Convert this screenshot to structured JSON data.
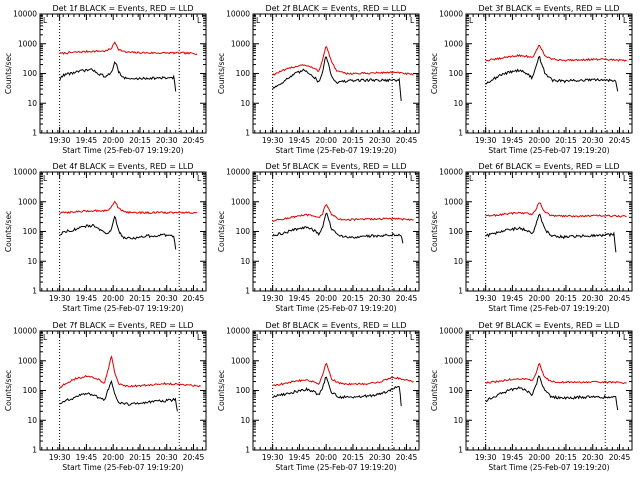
{
  "colors": {
    "events": "#000000",
    "lld": "#e00000",
    "frame": "#000000",
    "marker": "#000000"
  },
  "chart_data": [
    {
      "type": "line",
      "title": "Det 1f BLACK = Events, RED = LLD",
      "legend_letter": "L",
      "xlabel": "Start Time (25-Feb-07 19:19:20)",
      "ylabel": "Counts/sec",
      "yscale": "log",
      "ylim": [
        1,
        10000
      ],
      "ytick_labels": [
        "1",
        "10",
        "100",
        "1000",
        "10000"
      ],
      "xlim": [
        0,
        93
      ],
      "xtick_positions": [
        11,
        26,
        41,
        56,
        71,
        86
      ],
      "xtick_labels": [
        "19:30",
        "19:45",
        "20:00",
        "20:15",
        "20:30",
        "20:45"
      ],
      "markers_x": [
        11,
        78
      ],
      "data_x": [
        11,
        75
      ],
      "series": [
        {
          "name": "LLD",
          "color": "#e00000",
          "x": [
            11,
            20,
            30,
            37,
            40,
            42,
            44,
            48,
            55,
            65,
            75,
            80,
            88
          ],
          "y": [
            470,
            520,
            560,
            570,
            700,
            1150,
            650,
            520,
            500,
            490,
            490,
            490,
            460
          ]
        },
        {
          "name": "Events",
          "color": "#000000",
          "x": [
            11,
            13,
            20,
            26,
            30,
            34,
            37,
            40,
            42,
            44,
            47,
            52,
            60,
            70,
            75,
            76
          ],
          "y": [
            60,
            90,
            110,
            130,
            130,
            90,
            80,
            100,
            280,
            120,
            70,
            65,
            70,
            70,
            75,
            25
          ]
        }
      ]
    },
    {
      "type": "line",
      "title": "Det 2f BLACK = Events, RED = LLD",
      "legend_letter": "L",
      "xlabel": "Start Time (25-Feb-07 19:19:20)",
      "ylabel": "Counts/sec",
      "yscale": "log",
      "ylim": [
        1,
        10000
      ],
      "ytick_labels": [
        "1",
        "10",
        "100",
        "1000",
        "10000"
      ],
      "xlim": [
        0,
        93
      ],
      "xtick_positions": [
        11,
        26,
        41,
        56,
        71,
        86
      ],
      "xtick_labels": [
        "19:30",
        "19:45",
        "20:00",
        "20:15",
        "20:30",
        "20:45"
      ],
      "markers_x": [
        11,
        78
      ],
      "data_x": [
        11,
        82
      ],
      "series": [
        {
          "name": "LLD",
          "color": "#e00000",
          "x": [
            11,
            16,
            22,
            28,
            33,
            37,
            39,
            41,
            44,
            47,
            52,
            60,
            70,
            78,
            85,
            90
          ],
          "y": [
            90,
            120,
            160,
            200,
            160,
            120,
            300,
            880,
            250,
            120,
            100,
            100,
            105,
            110,
            100,
            90
          ]
        },
        {
          "name": "Events",
          "color": "#000000",
          "x": [
            11,
            14,
            18,
            24,
            29,
            33,
            37,
            39,
            41,
            44,
            47,
            52,
            60,
            70,
            78,
            82,
            83
          ],
          "y": [
            32,
            40,
            60,
            100,
            130,
            90,
            50,
            120,
            420,
            80,
            50,
            55,
            60,
            60,
            60,
            60,
            12
          ]
        }
      ]
    },
    {
      "type": "line",
      "title": "Det 3f BLACK = Events, RED = LLD",
      "legend_letter": "L",
      "xlabel": "Start Time (25-Feb-07 19:19:20)",
      "ylabel": "Counts/sec",
      "yscale": "log",
      "ylim": [
        1,
        10000
      ],
      "ytick_labels": [
        "1",
        "10",
        "100",
        "1000",
        "10000"
      ],
      "xlim": [
        0,
        93
      ],
      "xtick_positions": [
        11,
        26,
        41,
        56,
        71,
        86
      ],
      "xtick_labels": [
        "19:30",
        "19:45",
        "20:00",
        "20:15",
        "20:30",
        "20:45"
      ],
      "markers_x": [
        11,
        78
      ],
      "data_x": [
        11,
        85
      ],
      "series": [
        {
          "name": "LLD",
          "color": "#e00000",
          "x": [
            11,
            18,
            24,
            30,
            34,
            37,
            39,
            41,
            44,
            48,
            55,
            65,
            75,
            85,
            90
          ],
          "y": [
            270,
            310,
            370,
            400,
            380,
            330,
            500,
            950,
            420,
            300,
            280,
            290,
            300,
            280,
            270
          ]
        },
        {
          "name": "Events",
          "color": "#000000",
          "x": [
            11,
            14,
            20,
            26,
            30,
            34,
            37,
            39,
            41,
            44,
            48,
            55,
            65,
            75,
            82,
            84,
            85
          ],
          "y": [
            45,
            60,
            90,
            120,
            130,
            100,
            70,
            150,
            380,
            110,
            60,
            55,
            60,
            60,
            60,
            60,
            25
          ]
        }
      ]
    },
    {
      "type": "line",
      "title": "Det 4f BLACK = Events, RED = LLD",
      "legend_letter": "L",
      "xlabel": "Start Time (25-Feb-07 19:19:20)",
      "ylabel": "Counts/sec",
      "yscale": "log",
      "ylim": [
        1,
        10000
      ],
      "ytick_labels": [
        "1",
        "10",
        "100",
        "1000",
        "10000"
      ],
      "xlim": [
        0,
        93
      ],
      "xtick_positions": [
        11,
        26,
        41,
        56,
        71,
        86
      ],
      "xtick_labels": [
        "19:30",
        "19:45",
        "20:00",
        "20:15",
        "20:30",
        "20:45"
      ],
      "markers_x": [
        11,
        78
      ],
      "data_x": [
        11,
        75
      ],
      "series": [
        {
          "name": "LLD",
          "color": "#e00000",
          "x": [
            11,
            20,
            30,
            37,
            40,
            42,
            44,
            48,
            55,
            65,
            75,
            80,
            88
          ],
          "y": [
            420,
            460,
            500,
            500,
            650,
            1100,
            600,
            450,
            430,
            430,
            430,
            430,
            420
          ]
        },
        {
          "name": "Events",
          "color": "#000000",
          "x": [
            11,
            14,
            20,
            26,
            30,
            34,
            37,
            40,
            42,
            44,
            47,
            52,
            60,
            70,
            75,
            76
          ],
          "y": [
            80,
            100,
            120,
            150,
            160,
            110,
            80,
            120,
            320,
            110,
            60,
            60,
            70,
            75,
            70,
            25
          ]
        }
      ]
    },
    {
      "type": "line",
      "title": "Det 5f BLACK = Events, RED = LLD",
      "legend_letter": "L",
      "xlabel": "Start Time (25-Feb-07 19:19:20)",
      "ylabel": "Counts/sec",
      "yscale": "log",
      "ylim": [
        1,
        10000
      ],
      "ytick_labels": [
        "1",
        "10",
        "100",
        "1000",
        "10000"
      ],
      "xlim": [
        0,
        93
      ],
      "xtick_positions": [
        11,
        26,
        41,
        56,
        71,
        86
      ],
      "xtick_labels": [
        "19:30",
        "19:45",
        "20:00",
        "20:15",
        "20:30",
        "20:45"
      ],
      "markers_x": [
        11,
        78
      ],
      "data_x": [
        11,
        84
      ],
      "series": [
        {
          "name": "LLD",
          "color": "#e00000",
          "x": [
            11,
            18,
            24,
            30,
            34,
            37,
            39,
            41,
            44,
            48,
            55,
            65,
            75,
            84,
            90
          ],
          "y": [
            230,
            270,
            320,
            360,
            330,
            280,
            400,
            900,
            370,
            260,
            250,
            260,
            270,
            260,
            250
          ]
        },
        {
          "name": "Events",
          "color": "#000000",
          "x": [
            11,
            14,
            20,
            26,
            30,
            34,
            37,
            39,
            41,
            44,
            48,
            55,
            65,
            75,
            82,
            83,
            84
          ],
          "y": [
            70,
            80,
            100,
            130,
            140,
            110,
            80,
            150,
            450,
            120,
            70,
            65,
            70,
            75,
            80,
            80,
            40
          ]
        }
      ]
    },
    {
      "type": "line",
      "title": "Det 6f BLACK = Events, RED = LLD",
      "legend_letter": "L",
      "xlabel": "Start Time (25-Feb-07 19:19:20)",
      "ylabel": "Counts/sec",
      "yscale": "log",
      "ylim": [
        1,
        10000
      ],
      "ytick_labels": [
        "1",
        "10",
        "100",
        "1000",
        "10000"
      ],
      "xlim": [
        0,
        93
      ],
      "xtick_positions": [
        11,
        26,
        41,
        56,
        71,
        86
      ],
      "xtick_labels": [
        "19:30",
        "19:45",
        "20:00",
        "20:15",
        "20:30",
        "20:45"
      ],
      "markers_x": [
        11,
        78
      ],
      "data_x": [
        11,
        84
      ],
      "series": [
        {
          "name": "LLD",
          "color": "#e00000",
          "x": [
            11,
            18,
            24,
            30,
            34,
            37,
            39,
            41,
            44,
            48,
            55,
            65,
            75,
            84,
            90
          ],
          "y": [
            330,
            360,
            400,
            430,
            410,
            370,
            500,
            1050,
            450,
            340,
            330,
            330,
            340,
            330,
            320
          ]
        },
        {
          "name": "Events",
          "color": "#000000",
          "x": [
            11,
            14,
            20,
            26,
            30,
            34,
            37,
            39,
            41,
            44,
            48,
            55,
            65,
            75,
            82,
            83,
            84
          ],
          "y": [
            70,
            80,
            100,
            120,
            130,
            110,
            80,
            150,
            420,
            120,
            70,
            65,
            70,
            75,
            80,
            80,
            20
          ]
        }
      ]
    },
    {
      "type": "line",
      "title": "Det 7f BLACK = Events, RED = LLD",
      "legend_letter": "L",
      "xlabel": "Start Time (25-Feb-07 19:19:20)",
      "ylabel": "Counts/sec",
      "yscale": "log",
      "ylim": [
        1,
        10000
      ],
      "ytick_labels": [
        "1",
        "10",
        "100",
        "1000",
        "10000"
      ],
      "xlim": [
        0,
        93
      ],
      "xtick_positions": [
        11,
        26,
        41,
        56,
        71,
        86
      ],
      "xtick_labels": [
        "19:30",
        "19:45",
        "20:00",
        "20:15",
        "20:30",
        "20:45"
      ],
      "markers_x": [
        11,
        78
      ],
      "data_x": [
        11,
        90
      ],
      "series": [
        {
          "name": "LLD",
          "color": "#e00000",
          "x": [
            11,
            14,
            20,
            26,
            30,
            34,
            36,
            38,
            40,
            42,
            44,
            47,
            52,
            60,
            70,
            80,
            90
          ],
          "y": [
            120,
            170,
            250,
            300,
            280,
            220,
            160,
            450,
            1500,
            350,
            170,
            140,
            140,
            150,
            170,
            160,
            140
          ]
        },
        {
          "name": "Events",
          "color": "#000000",
          "x": [
            11,
            14,
            20,
            26,
            30,
            34,
            36,
            38,
            40,
            42,
            44,
            47,
            52,
            60,
            70,
            76,
            77
          ],
          "y": [
            35,
            45,
            60,
            80,
            70,
            55,
            45,
            100,
            230,
            70,
            40,
            35,
            35,
            40,
            45,
            50,
            20
          ]
        }
      ]
    },
    {
      "type": "line",
      "title": "Det 8f BLACK = Events, RED = LLD",
      "legend_letter": "L",
      "xlabel": "Start Time (25-Feb-07 19:19:20)",
      "ylabel": "Counts/sec",
      "yscale": "log",
      "ylim": [
        1,
        10000
      ],
      "ytick_labels": [
        "1",
        "10",
        "100",
        "1000",
        "10000"
      ],
      "xlim": [
        0,
        93
      ],
      "xtick_positions": [
        11,
        26,
        41,
        56,
        71,
        86
      ],
      "xtick_labels": [
        "19:30",
        "19:45",
        "20:00",
        "20:15",
        "20:30",
        "20:45"
      ],
      "markers_x": [
        11,
        78
      ],
      "data_x": [
        11,
        90
      ],
      "series": [
        {
          "name": "LLD",
          "color": "#e00000",
          "x": [
            11,
            18,
            24,
            30,
            34,
            37,
            39,
            41,
            44,
            48,
            55,
            65,
            72,
            78,
            83,
            90
          ],
          "y": [
            150,
            170,
            210,
            230,
            200,
            160,
            350,
            850,
            250,
            180,
            160,
            170,
            200,
            280,
            250,
            200
          ]
        },
        {
          "name": "Events",
          "color": "#000000",
          "x": [
            11,
            14,
            20,
            26,
            30,
            34,
            37,
            39,
            41,
            44,
            48,
            55,
            65,
            72,
            78,
            82,
            83
          ],
          "y": [
            60,
            70,
            80,
            100,
            110,
            90,
            70,
            130,
            300,
            90,
            60,
            60,
            65,
            80,
            110,
            140,
            30
          ]
        }
      ]
    },
    {
      "type": "line",
      "title": "Det 9f BLACK = Events, RED = LLD",
      "legend_letter": "L",
      "xlabel": "Start Time (25-Feb-07 19:19:20)",
      "ylabel": "Counts/sec",
      "yscale": "log",
      "ylim": [
        1,
        10000
      ],
      "ytick_labels": [
        "1",
        "10",
        "100",
        "1000",
        "10000"
      ],
      "xlim": [
        0,
        93
      ],
      "xtick_positions": [
        11,
        26,
        41,
        56,
        71,
        86
      ],
      "xtick_labels": [
        "19:30",
        "19:45",
        "20:00",
        "20:15",
        "20:30",
        "20:45"
      ],
      "markers_x": [
        11,
        78
      ],
      "data_x": [
        11,
        85
      ],
      "series": [
        {
          "name": "LLD",
          "color": "#e00000",
          "x": [
            11,
            18,
            24,
            30,
            34,
            37,
            39,
            41,
            44,
            48,
            55,
            65,
            75,
            85,
            90
          ],
          "y": [
            180,
            200,
            230,
            250,
            240,
            210,
            330,
            850,
            280,
            200,
            190,
            190,
            190,
            190,
            180
          ]
        },
        {
          "name": "Events",
          "color": "#000000",
          "x": [
            11,
            14,
            20,
            26,
            30,
            34,
            37,
            39,
            41,
            44,
            48,
            55,
            65,
            75,
            82,
            84,
            85
          ],
          "y": [
            45,
            55,
            80,
            110,
            120,
            100,
            70,
            140,
            330,
            100,
            60,
            55,
            60,
            60,
            60,
            60,
            22
          ]
        }
      ]
    }
  ]
}
